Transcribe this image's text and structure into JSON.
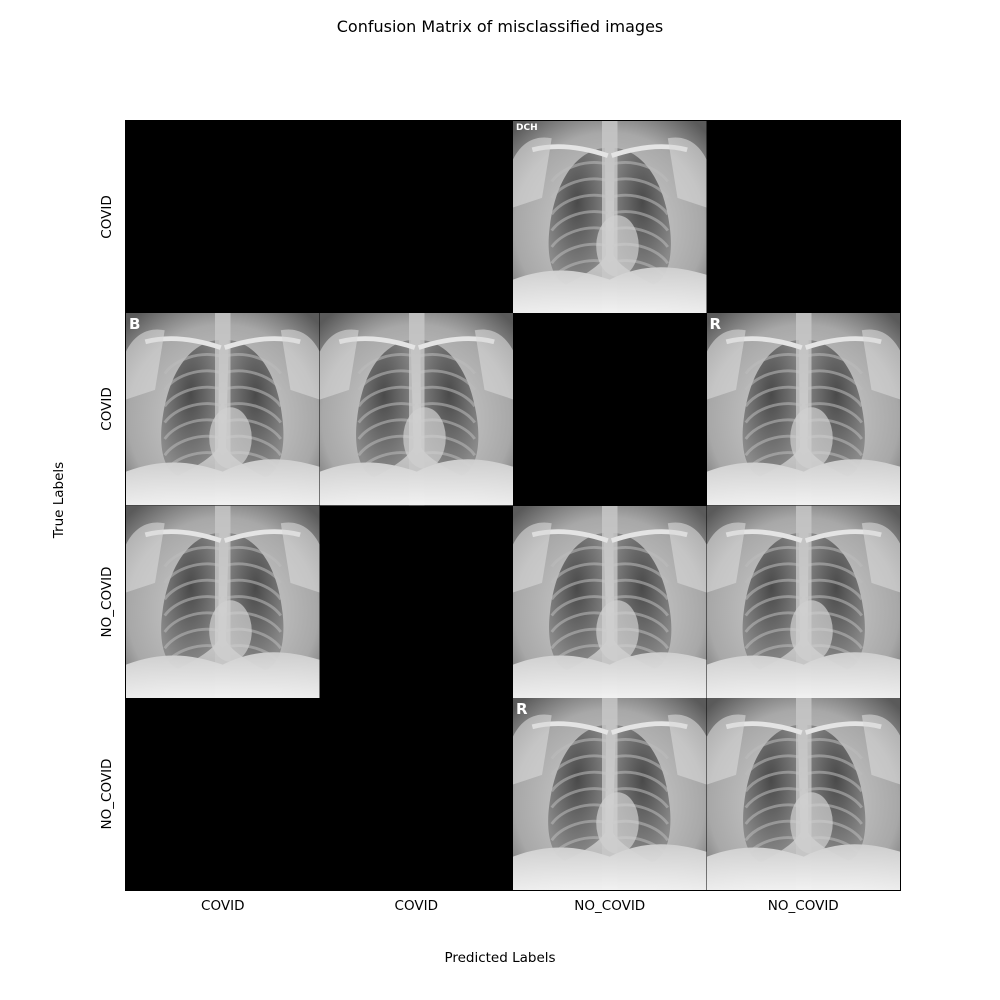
{
  "chart_data": {
    "type": "image-grid",
    "title": "Confusion Matrix of misclassified images",
    "xlabel": "Predicted Labels",
    "ylabel": "True Labels",
    "x_tick_labels": [
      "COVID",
      "COVID",
      "NO_COVID",
      "NO_COVID"
    ],
    "y_tick_labels": [
      "COVID",
      "COVID",
      "NO_COVID",
      "NO_COVID"
    ],
    "cells": [
      [
        false,
        false,
        true,
        false
      ],
      [
        true,
        true,
        false,
        true
      ],
      [
        true,
        false,
        true,
        true
      ],
      [
        false,
        false,
        true,
        true
      ]
    ],
    "cell_marks": [
      [
        "",
        "",
        "DCH",
        ""
      ],
      [
        "B",
        "",
        "",
        "R"
      ],
      [
        "",
        "",
        "",
        ""
      ],
      [
        "",
        "",
        "R",
        ""
      ]
    ]
  }
}
